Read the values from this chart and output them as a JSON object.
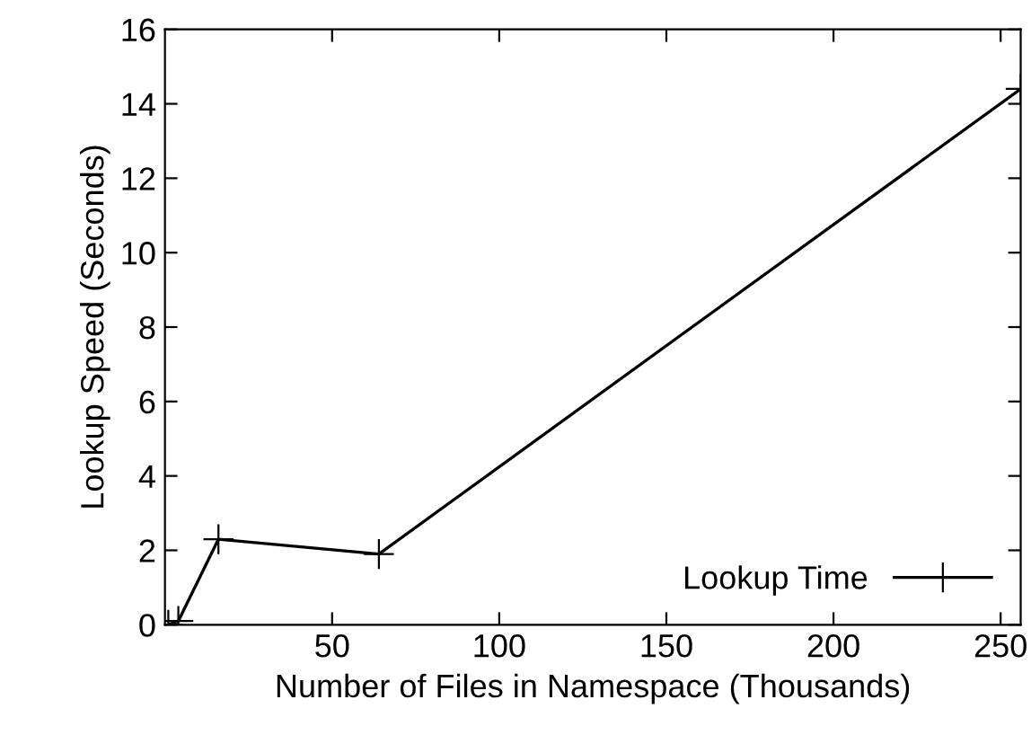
{
  "chart_data": {
    "type": "line",
    "xlabel": "Number of Files in Namespace (Thousands)",
    "ylabel": "Lookup Speed (Seconds)",
    "x": [
      1,
      4,
      16,
      64,
      256
    ],
    "series": [
      {
        "name": "Lookup Time",
        "color": "#000000",
        "values": [
          0.0,
          0.1,
          2.3,
          1.9,
          14.4
        ]
      }
    ],
    "xlim": [
      0,
      256
    ],
    "xticks": [
      50,
      100,
      150,
      200,
      250
    ],
    "ylim": [
      0,
      16
    ],
    "yticks": [
      0,
      2,
      4,
      6,
      8,
      10,
      12,
      14,
      16
    ],
    "marker": "cross",
    "legend": "bottom right",
    "grid": false
  }
}
